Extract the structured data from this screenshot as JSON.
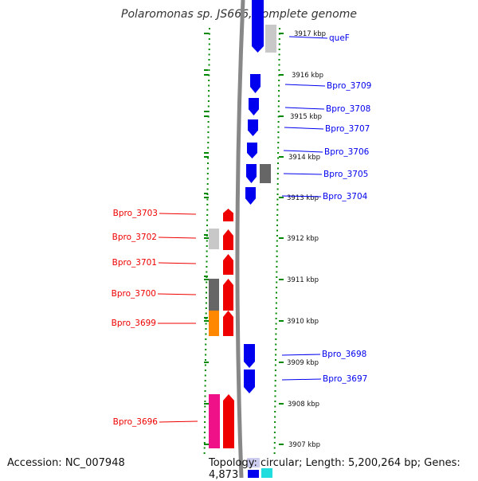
{
  "header": {
    "title": "Polaromonas sp. JS666, complete genome"
  },
  "footer": {
    "accession": "Accession: NC_007948",
    "topology": "Topology: circular; Length: 5,200,264 bp; Genes: 4,873"
  },
  "colors": {
    "forward": "#0000ee",
    "reverse": "#ee0000",
    "backbone": "#888888",
    "dots": "#008800",
    "light_gray": "#c8c8c8",
    "dark_gray": "#666666",
    "orange": "#ff8800",
    "pink": "#ee1188",
    "cyan": "#22dddd"
  },
  "scale": {
    "unit": "kbp",
    "ticks": [
      3917,
      3916,
      3915,
      3914,
      3913,
      3912,
      3911,
      3910,
      3909,
      3908,
      3907
    ],
    "tick_labels": [
      "3917 kbp",
      "3916 kbp",
      "3915 kbp",
      "3914 kbp",
      "3913 kbp",
      "3912 kbp",
      "3911 kbp",
      "3910 kbp",
      "3909 kbp",
      "3908 kbp",
      "3907 kbp"
    ]
  },
  "genes": [
    {
      "name": "queF",
      "strand": "+"
    },
    {
      "name": "Bpro_3709",
      "strand": "+"
    },
    {
      "name": "Bpro_3708",
      "strand": "+"
    },
    {
      "name": "Bpro_3707",
      "strand": "+"
    },
    {
      "name": "Bpro_3706",
      "strand": "+"
    },
    {
      "name": "Bpro_3705",
      "strand": "+"
    },
    {
      "name": "Bpro_3704",
      "strand": "+"
    },
    {
      "name": "Bpro_3703",
      "strand": "-"
    },
    {
      "name": "Bpro_3702",
      "strand": "-"
    },
    {
      "name": "Bpro_3701",
      "strand": "-"
    },
    {
      "name": "Bpro_3700",
      "strand": "-"
    },
    {
      "name": "Bpro_3699",
      "strand": "-"
    },
    {
      "name": "Bpro_3698",
      "strand": "+"
    },
    {
      "name": "Bpro_3697",
      "strand": "+"
    },
    {
      "name": "Bpro_3696",
      "strand": "-"
    }
  ]
}
